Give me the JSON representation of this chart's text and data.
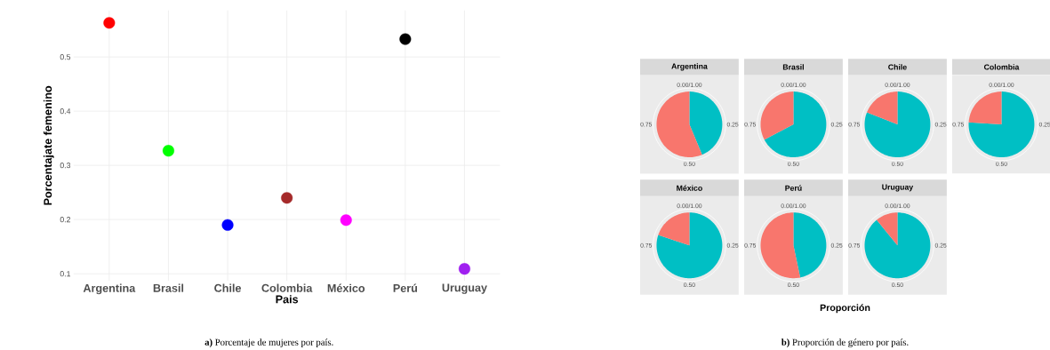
{
  "chart_data": [
    {
      "type": "scatter",
      "categories": [
        "Argentina",
        "Brasil",
        "Chile",
        "Colombia",
        "México",
        "Perú",
        "Uruguay"
      ],
      "values": [
        0.563,
        0.327,
        0.19,
        0.24,
        0.199,
        0.533,
        0.109
      ],
      "colors": [
        "#ff0000",
        "#00ff00",
        "#0000ff",
        "#a52a2a",
        "#ff00ff",
        "#000000",
        "#a020f0"
      ],
      "xlabel": "Pais",
      "ylabel": "Porcentajate femenino",
      "ylim": [
        0.087,
        0.586
      ],
      "yticks": [
        0.1,
        0.2,
        0.3,
        0.4,
        0.5
      ],
      "grid": true,
      "annotations": [
        "**a)** Porcentaje de mujeres por país."
      ]
    },
    {
      "type": "pie",
      "title": "Argentina",
      "categories": [
        null,
        null
      ],
      "values": [
        43.7,
        56.3
      ],
      "colors": [
        "#00bfc4",
        "#f8766d"
      ],
      "annotations": [
        "0.00/1.00",
        "0.25",
        "0.50",
        "0.75"
      ]
    },
    {
      "type": "pie",
      "title": "Brasil",
      "categories": [
        null,
        null
      ],
      "values": [
        67.3,
        32.7
      ],
      "colors": [
        "#00bfc4",
        "#f8766d"
      ],
      "annotations": [
        "0.00/1.00",
        "0.25",
        "0.50",
        "0.75"
      ]
    },
    {
      "type": "pie",
      "title": "Chile",
      "categories": [
        null,
        null
      ],
      "values": [
        81,
        19
      ],
      "colors": [
        "#00bfc4",
        "#f8766d"
      ],
      "annotations": [
        "0.00/1.00",
        "0.25",
        "0.50",
        "0.75"
      ]
    },
    {
      "type": "pie",
      "title": "Colombia",
      "categories": [
        null,
        null
      ],
      "values": [
        76,
        24
      ],
      "colors": [
        "#00bfc4",
        "#f8766d"
      ],
      "annotations": [
        "0.00/1.00",
        "0.25",
        "0.50",
        "0.75"
      ]
    },
    {
      "type": "pie",
      "title": "México",
      "categories": [
        null,
        null
      ],
      "values": [
        80.1,
        19.9
      ],
      "colors": [
        "#00bfc4",
        "#f8766d"
      ],
      "annotations": [
        "0.00/1.00",
        "0.25",
        "0.50",
        "0.75"
      ]
    },
    {
      "type": "pie",
      "title": "Perú",
      "categories": [
        null,
        null
      ],
      "values": [
        46.7,
        53.3
      ],
      "colors": [
        "#00bfc4",
        "#f8766d"
      ],
      "annotations": [
        "0.00/1.00",
        "0.25",
        "0.50",
        "0.75"
      ]
    },
    {
      "type": "pie",
      "title": "Uruguay",
      "categories": [
        null,
        null
      ],
      "values": [
        89.1,
        10.9
      ],
      "colors": [
        "#00bfc4",
        "#f8766d"
      ],
      "xlabel": "Proporción",
      "annotations": [
        "0.00/1.00",
        "0.25",
        "0.50",
        "0.75",
        "**b)** Proporción de género por país."
      ]
    }
  ]
}
